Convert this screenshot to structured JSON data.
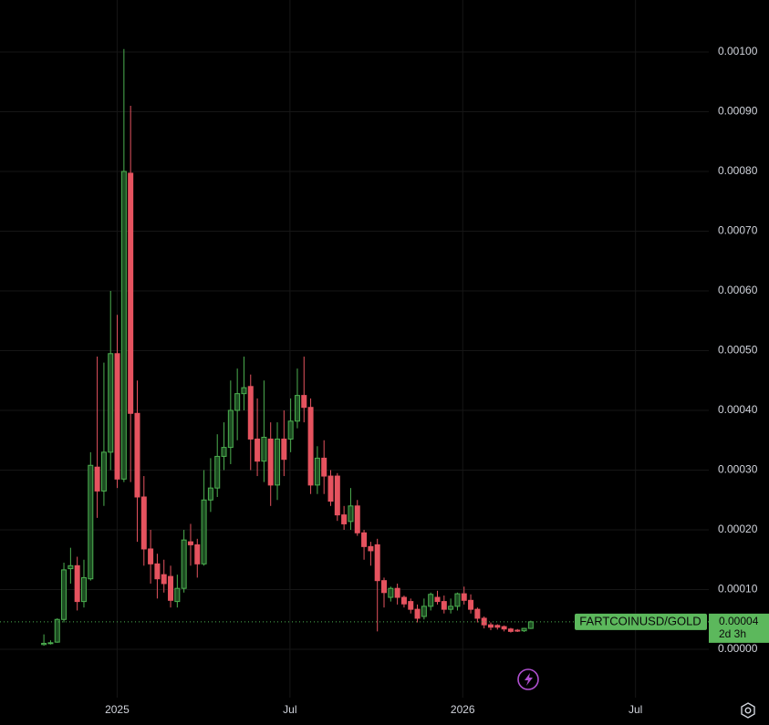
{
  "chart_data": {
    "type": "candlestick",
    "x": [
      2024.788,
      2024.8073,
      2024.8266,
      2024.8459,
      2024.8652,
      2024.8845,
      2024.9038,
      2024.9231,
      2024.9424,
      2024.9617,
      2024.981,
      2025.0003,
      2025.0196,
      2025.0389,
      2025.0582,
      2025.0775,
      2025.0968,
      2025.1161,
      2025.1354,
      2025.1547,
      2025.174,
      2025.1933,
      2025.2126,
      2025.2319,
      2025.2512,
      2025.2705,
      2025.2898,
      2025.3091,
      2025.3284,
      2025.3477,
      2025.367,
      2025.3863,
      2025.4056,
      2025.4249,
      2025.4442,
      2025.4635,
      2025.4828,
      2025.5021,
      2025.5214,
      2025.5407,
      2025.56,
      2025.5793,
      2025.5986,
      2025.6179,
      2025.6372,
      2025.6565,
      2025.6758,
      2025.6951,
      2025.7144,
      2025.7337,
      2025.753,
      2025.7723,
      2025.7916,
      2025.8109,
      2025.8302,
      2025.8495,
      2025.8688,
      2025.8881,
      2025.9074,
      2025.9267,
      2025.946,
      2025.9653,
      2025.9846,
      2026.0039,
      2026.0232,
      2026.0425,
      2026.0618,
      2026.0811,
      2026.1004,
      2026.1197,
      2026.139,
      2026.1583,
      2026.1776,
      2026.1969
    ],
    "open": [
      8e-06,
      1e-05,
      1.2e-05,
      5e-05,
      0.000135,
      0.00014,
      8e-05,
      0.000118,
      0.000305,
      0.000265,
      0.00033,
      0.000495,
      0.000285,
      0.000797,
      0.000395,
      0.000255,
      0.000168,
      0.000143,
      0.000125,
      0.000122,
      8e-05,
      0.000102,
      0.00018,
      0.000175,
      0.000143,
      0.00025,
      0.00027,
      0.000323,
      0.000338,
      0.0004,
      0.000428,
      0.00044,
      0.000352,
      0.000315,
      0.000352,
      0.000275,
      0.000352,
      0.000352,
      0.000382,
      0.000425,
      0.000405,
      0.000275,
      0.00032,
      0.00029,
      0.00029,
      0.000225,
      0.000214,
      0.00024,
      0.000195,
      0.000172,
      0.000175,
      0.000115,
      8.7e-05,
      0.000102,
      8.7e-05,
      8e-05,
      6.7e-05,
      5.5e-05,
      7.2e-05,
      8.7e-05,
      8e-05,
      6.7e-05,
      7.2e-05,
      9.3e-05,
      8.2e-05,
      6.7e-05,
      5.2e-05,
      4.1e-05,
      4e-05,
      3.8e-05,
      3.4e-05,
      3.2e-05,
      3.1e-05,
      3.5e-05
    ],
    "high": [
      2.5e-05,
      1.5e-05,
      5.2e-05,
      0.000145,
      0.00017,
      0.000155,
      0.00015,
      0.00033,
      0.00049,
      0.00048,
      0.0006,
      0.00056,
      0.001005,
      0.00091,
      0.00045,
      0.00029,
      0.0002,
      0.00016,
      0.00015,
      0.00014,
      0.000125,
      0.0002,
      0.00021,
      0.000185,
      0.0003,
      0.00032,
      0.00036,
      0.00038,
      0.00045,
      0.00047,
      0.00049,
      0.00046,
      0.00042,
      0.00045,
      0.00038,
      0.00038,
      0.0004,
      0.00042,
      0.00047,
      0.00049,
      0.00042,
      0.00034,
      0.00035,
      0.0003,
      0.000295,
      0.00024,
      0.00027,
      0.00025,
      0.0002,
      0.00018,
      0.000185,
      0.00012,
      0.000105,
      0.00011,
      9e-05,
      8.5e-05,
      7.5e-05,
      8.5e-05,
      9.5e-05,
      9.8e-05,
      9e-05,
      8.5e-05,
      9.5e-05,
      0.000105,
      9.2e-05,
      7e-05,
      5.5e-05,
      4.5e-05,
      4.2e-05,
      4e-05,
      3.6e-05,
      3.4e-05,
      3.6e-05,
      4.8e-05
    ],
    "low": [
      6e-06,
      8e-06,
      1.1e-05,
      4.5e-05,
      0.00011,
      6.5e-05,
      7e-05,
      0.000115,
      0.00022,
      0.00024,
      0.0003,
      0.00027,
      0.00028,
      0.00028,
      0.00018,
      0.00014,
      0.00011,
      8.5e-05,
      9.5e-05,
      7e-05,
      7e-05,
      9.5e-05,
      0.00014,
      0.00012,
      0.00014,
      0.00023,
      0.000255,
      0.0003,
      0.00031,
      0.00035,
      0.0004,
      0.0003,
      0.00029,
      0.00028,
      0.00024,
      0.00025,
      0.00029,
      0.00033,
      0.00037,
      0.00038,
      0.00026,
      0.00026,
      0.00026,
      0.00024,
      0.000215,
      0.0002,
      0.0002,
      0.00019,
      0.00015,
      0.00014,
      3e-05,
      7e-05,
      8e-05,
      7.5e-05,
      7e-05,
      6e-05,
      4.5e-05,
      5e-05,
      6.5e-05,
      7.5e-05,
      6e-05,
      6e-05,
      6.5e-05,
      7.5e-05,
      6e-05,
      4.5e-05,
      3.5e-05,
      3.2e-05,
      3.3e-05,
      3e-05,
      2.8e-05,
      2.9e-05,
      2.9e-05,
      3.4e-05
    ],
    "close": [
      1e-05,
      1.1e-05,
      5e-05,
      0.000133,
      0.00014,
      8e-05,
      0.00012,
      0.000308,
      0.000265,
      0.00033,
      0.000495,
      0.000285,
      0.0008,
      0.000395,
      0.000255,
      0.000168,
      0.000143,
      0.000118,
      0.00011,
      8.2e-05,
      0.000102,
      0.000183,
      0.000175,
      0.000143,
      0.00025,
      0.00027,
      0.000323,
      0.000338,
      0.0004,
      0.000428,
      0.000438,
      0.000352,
      0.000315,
      0.000355,
      0.000275,
      0.000352,
      0.000318,
      0.000382,
      0.000425,
      0.000405,
      0.000275,
      0.00032,
      0.00029,
      0.000248,
      0.000225,
      0.00021,
      0.00024,
      0.000195,
      0.000172,
      0.000165,
      0.000115,
      9.5e-05,
      0.000102,
      8.7e-05,
      7.6e-05,
      6.7e-05,
      5.2e-05,
      7.2e-05,
      9.2e-05,
      8e-05,
      6.7e-05,
      7.2e-05,
      9.3e-05,
      8.2e-05,
      6.7e-05,
      5.2e-05,
      4.1e-05,
      3.7e-05,
      3.7e-05,
      3.4e-05,
      3e-05,
      3.1e-05,
      3.5e-05,
      4.6e-05
    ],
    "up_color": "#4caf50",
    "down_color": "#e5535f",
    "xlim": [
      2024.661,
      2026.712
    ],
    "xticks": [
      {
        "value": 2025,
        "label": "2025"
      },
      {
        "value": 2025.5,
        "label": "Jul"
      },
      {
        "value": 2026,
        "label": "2026"
      },
      {
        "value": 2026.5,
        "label": "Jul"
      }
    ],
    "ylim": [
      -8.09e-05,
      0.001087
    ],
    "yticks": [
      {
        "value": 0,
        "label": "0.00000"
      },
      {
        "value": 0.0001,
        "label": "0.00010"
      },
      {
        "value": 0.0002,
        "label": "0.00020"
      },
      {
        "value": 0.0003,
        "label": "0.00030"
      },
      {
        "value": 0.0004,
        "label": "0.00040"
      },
      {
        "value": 0.0005,
        "label": "0.00050"
      },
      {
        "value": 0.0006,
        "label": "0.00060"
      },
      {
        "value": 0.0007,
        "label": "0.00070"
      },
      {
        "value": 0.0008,
        "label": "0.00080"
      },
      {
        "value": 0.0009,
        "label": "0.00090"
      },
      {
        "value": 0.001,
        "label": "0.00100"
      }
    ],
    "grid": true,
    "symbol": "FARTCOINUSD/GOLD",
    "last_price": "0.00004",
    "countdown": "2d 3h"
  }
}
